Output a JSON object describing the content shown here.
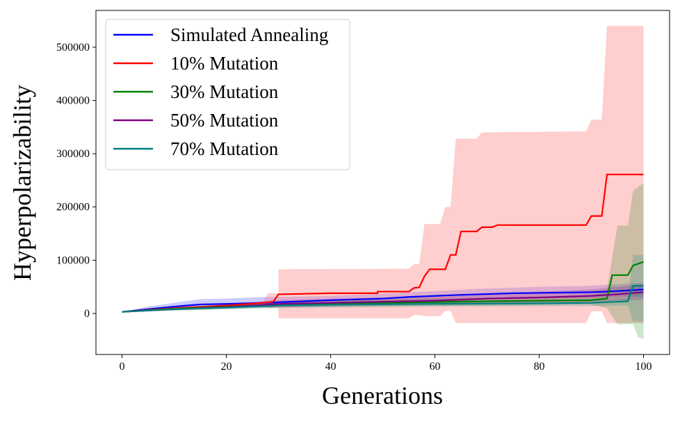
{
  "chart_data": {
    "type": "line",
    "title": "",
    "xlabel": "Generations",
    "ylabel": "Hyperpolarizability",
    "xlim": [
      -5,
      105
    ],
    "ylim": [
      -77000,
      569000
    ],
    "xticks": [
      0,
      20,
      40,
      60,
      80,
      100
    ],
    "yticks": [
      0,
      100000,
      200000,
      300000,
      400000,
      500000
    ],
    "grid": false,
    "legend_placement": "top-left",
    "series": [
      {
        "name": "Simulated Annealing",
        "color": "#0000ff",
        "line": [
          [
            0,
            3000
          ],
          [
            5,
            8000
          ],
          [
            10,
            13000
          ],
          [
            15,
            17000
          ],
          [
            20,
            18000
          ],
          [
            27,
            20000
          ],
          [
            30,
            21000
          ],
          [
            40,
            25000
          ],
          [
            50,
            28000
          ],
          [
            55,
            31000
          ],
          [
            60,
            33000
          ],
          [
            65,
            35000
          ],
          [
            75,
            38000
          ],
          [
            90,
            40000
          ],
          [
            95,
            42000
          ],
          [
            100,
            45000
          ]
        ],
        "upper": [
          [
            0,
            3000
          ],
          [
            5,
            13000
          ],
          [
            10,
            20000
          ],
          [
            15,
            27000
          ],
          [
            20,
            28000
          ],
          [
            27,
            31000
          ],
          [
            30,
            31000
          ],
          [
            40,
            33000
          ],
          [
            50,
            37000
          ],
          [
            60,
            42000
          ],
          [
            70,
            47000
          ],
          [
            80,
            50000
          ],
          [
            90,
            52000
          ],
          [
            100,
            58000
          ]
        ],
        "lower": [
          [
            0,
            3000
          ],
          [
            10,
            8000
          ],
          [
            20,
            11000
          ],
          [
            30,
            12000
          ],
          [
            40,
            15000
          ],
          [
            50,
            18000
          ],
          [
            60,
            22000
          ],
          [
            70,
            26000
          ],
          [
            80,
            28000
          ],
          [
            90,
            29000
          ],
          [
            100,
            32000
          ]
        ]
      },
      {
        "name": "10% Mutation",
        "color": "#ff0000",
        "line": [
          [
            0,
            3000
          ],
          [
            10,
            10000
          ],
          [
            20,
            15000
          ],
          [
            27,
            20000
          ],
          [
            29,
            22000
          ],
          [
            30,
            36000
          ],
          [
            40,
            38000
          ],
          [
            49,
            38000
          ],
          [
            49,
            41000
          ],
          [
            55,
            41000
          ],
          [
            56,
            48000
          ],
          [
            57,
            49000
          ],
          [
            58,
            70000
          ],
          [
            59,
            83000
          ],
          [
            62,
            83000
          ],
          [
            63,
            110000
          ],
          [
            64,
            110000
          ],
          [
            65,
            154000
          ],
          [
            68,
            154000
          ],
          [
            69,
            162000
          ],
          [
            71,
            162000
          ],
          [
            72,
            166000
          ],
          [
            89,
            166000
          ],
          [
            90,
            183000
          ],
          [
            92,
            183000
          ],
          [
            93,
            261000
          ],
          [
            100,
            261000
          ]
        ],
        "upper": [
          [
            0,
            3000
          ],
          [
            10,
            11000
          ],
          [
            20,
            17000
          ],
          [
            27,
            22000
          ],
          [
            28,
            38000
          ],
          [
            30,
            38000
          ],
          [
            30,
            83000
          ],
          [
            55,
            84000
          ],
          [
            56,
            93000
          ],
          [
            57,
            93000
          ],
          [
            58,
            168000
          ],
          [
            61,
            168000
          ],
          [
            62,
            200000
          ],
          [
            63,
            200000
          ],
          [
            64,
            328000
          ],
          [
            68,
            328000
          ],
          [
            69,
            340000
          ],
          [
            89,
            342000
          ],
          [
            90,
            364000
          ],
          [
            92,
            364000
          ],
          [
            93,
            540000
          ],
          [
            100,
            540000
          ]
        ],
        "lower": [
          [
            0,
            3000
          ],
          [
            10,
            9000
          ],
          [
            20,
            13000
          ],
          [
            27,
            16000
          ],
          [
            28,
            10000
          ],
          [
            30,
            10000
          ],
          [
            30,
            -9000
          ],
          [
            55,
            -9000
          ],
          [
            56,
            -3000
          ],
          [
            57,
            -3000
          ],
          [
            58,
            -5000
          ],
          [
            61,
            -5000
          ],
          [
            62,
            5000
          ],
          [
            63,
            5000
          ],
          [
            64,
            -18000
          ],
          [
            89,
            -18000
          ],
          [
            90,
            4000
          ],
          [
            92,
            4000
          ],
          [
            93,
            -18000
          ],
          [
            100,
            -18000
          ]
        ]
      },
      {
        "name": "30% Mutation",
        "color": "#008000",
        "line": [
          [
            0,
            3000
          ],
          [
            10,
            9000
          ],
          [
            20,
            13000
          ],
          [
            30,
            17000
          ],
          [
            50,
            20000
          ],
          [
            70,
            23000
          ],
          [
            90,
            25000
          ],
          [
            93,
            28000
          ],
          [
            94,
            72000
          ],
          [
            97,
            72000
          ],
          [
            98,
            90000
          ],
          [
            100,
            97000
          ]
        ],
        "upper": [
          [
            0,
            3000
          ],
          [
            30,
            22000
          ],
          [
            60,
            28000
          ],
          [
            90,
            33000
          ],
          [
            93,
            45000
          ],
          [
            95,
            165000
          ],
          [
            97,
            165000
          ],
          [
            98,
            230000
          ],
          [
            100,
            245000
          ]
        ],
        "lower": [
          [
            0,
            3000
          ],
          [
            30,
            12000
          ],
          [
            60,
            14000
          ],
          [
            90,
            17000
          ],
          [
            93,
            10000
          ],
          [
            95,
            -20000
          ],
          [
            98,
            -20000
          ],
          [
            99,
            -45000
          ],
          [
            100,
            -48000
          ]
        ]
      },
      {
        "name": "50% Mutation",
        "color": "#800080",
        "line": [
          [
            0,
            3000
          ],
          [
            10,
            8000
          ],
          [
            20,
            12000
          ],
          [
            30,
            18000
          ],
          [
            40,
            20000
          ],
          [
            50,
            22000
          ],
          [
            60,
            24000
          ],
          [
            70,
            28000
          ],
          [
            80,
            30000
          ],
          [
            90,
            33000
          ],
          [
            95,
            36000
          ],
          [
            100,
            40000
          ]
        ],
        "upper": [
          [
            0,
            3000
          ],
          [
            30,
            25000
          ],
          [
            50,
            30000
          ],
          [
            70,
            37000
          ],
          [
            90,
            45000
          ],
          [
            100,
            55000
          ]
        ],
        "lower": [
          [
            0,
            3000
          ],
          [
            30,
            12000
          ],
          [
            50,
            15000
          ],
          [
            70,
            19000
          ],
          [
            90,
            22000
          ],
          [
            100,
            26000
          ]
        ]
      },
      {
        "name": "70% Mutation",
        "color": "#008080",
        "line": [
          [
            0,
            3000
          ],
          [
            10,
            8000
          ],
          [
            20,
            11000
          ],
          [
            30,
            15000
          ],
          [
            45,
            17000
          ],
          [
            60,
            18000
          ],
          [
            80,
            19000
          ],
          [
            90,
            20000
          ],
          [
            97,
            23000
          ],
          [
            98,
            52000
          ],
          [
            100,
            52000
          ]
        ],
        "upper": [
          [
            0,
            3000
          ],
          [
            30,
            20000
          ],
          [
            60,
            23000
          ],
          [
            90,
            26000
          ],
          [
            97,
            30000
          ],
          [
            98,
            110000
          ],
          [
            100,
            110000
          ]
        ],
        "lower": [
          [
            0,
            3000
          ],
          [
            30,
            10000
          ],
          [
            60,
            13000
          ],
          [
            90,
            14000
          ],
          [
            97,
            15000
          ],
          [
            98,
            -15000
          ],
          [
            100,
            -15000
          ]
        ]
      }
    ]
  }
}
